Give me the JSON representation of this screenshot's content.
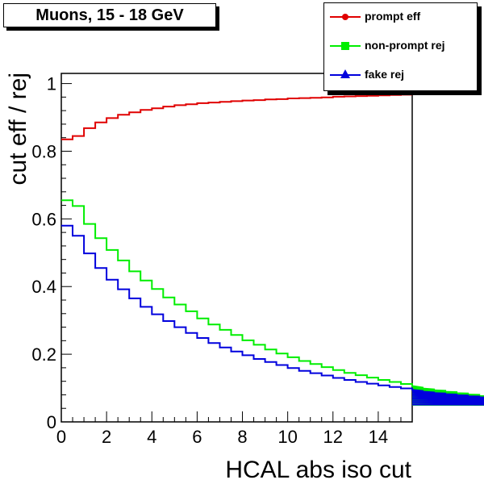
{
  "chart_data": {
    "type": "line",
    "title": "Muons, 15 - 18 GeV",
    "xlabel": "HCAL abs iso cut",
    "ylabel": "cut eff / rej",
    "xlim": [
      0,
      15.5
    ],
    "ylim": [
      0,
      1.03
    ],
    "xticks": [
      "0",
      "2",
      "4",
      "6",
      "8",
      "10",
      "12",
      "14"
    ],
    "yticks": [
      "0",
      "0.2",
      "0.4",
      "0.6",
      "0.8",
      "1"
    ],
    "grid": false,
    "legend_position": "top-right",
    "bin_width": 0.5,
    "series": [
      {
        "name": "prompt eff",
        "color": "#e00000",
        "marker": "circle",
        "values": [
          0.835,
          0.845,
          0.868,
          0.885,
          0.898,
          0.908,
          0.915,
          0.922,
          0.927,
          0.932,
          0.936,
          0.939,
          0.942,
          0.944,
          0.946,
          0.948,
          0.95,
          0.951,
          0.953,
          0.954,
          0.956,
          0.957,
          0.958,
          0.959,
          0.961,
          0.962,
          0.963,
          0.964,
          0.965,
          0.966,
          0.967
        ]
      },
      {
        "name": "non-prompt rej",
        "color": "#00ee00",
        "marker": "square",
        "values": [
          0.655,
          0.638,
          0.585,
          0.543,
          0.508,
          0.477,
          0.445,
          0.418,
          0.393,
          0.368,
          0.347,
          0.327,
          0.306,
          0.288,
          0.272,
          0.257,
          0.241,
          0.228,
          0.214,
          0.202,
          0.191,
          0.18,
          0.171,
          0.162,
          0.153,
          0.145,
          0.138,
          0.131,
          0.124,
          0.118,
          0.112,
          0.106,
          0.101,
          0.096,
          0.092,
          0.088,
          0.084,
          0.08,
          0.076,
          0.072,
          0.069,
          0.066,
          0.063,
          0.061,
          0.059,
          0.057,
          0.055,
          0.053,
          0.051,
          0.05
        ]
      },
      {
        "name": "fake rej",
        "color": "#0000dd",
        "marker": "triangle",
        "values": [
          0.58,
          0.55,
          0.498,
          0.455,
          0.42,
          0.392,
          0.365,
          0.34,
          0.318,
          0.298,
          0.28,
          0.263,
          0.248,
          0.233,
          0.22,
          0.208,
          0.197,
          0.186,
          0.177,
          0.168,
          0.159,
          0.151,
          0.144,
          0.137,
          0.13,
          0.124,
          0.118,
          0.113,
          0.108,
          0.103,
          0.099,
          0.095,
          0.091,
          0.087,
          0.084,
          0.081,
          0.078,
          0.075,
          0.072,
          0.069,
          0.067,
          0.065,
          0.063,
          0.061,
          0.059,
          0.057,
          0.055,
          0.053,
          0.052,
          0.051
        ]
      }
    ]
  }
}
